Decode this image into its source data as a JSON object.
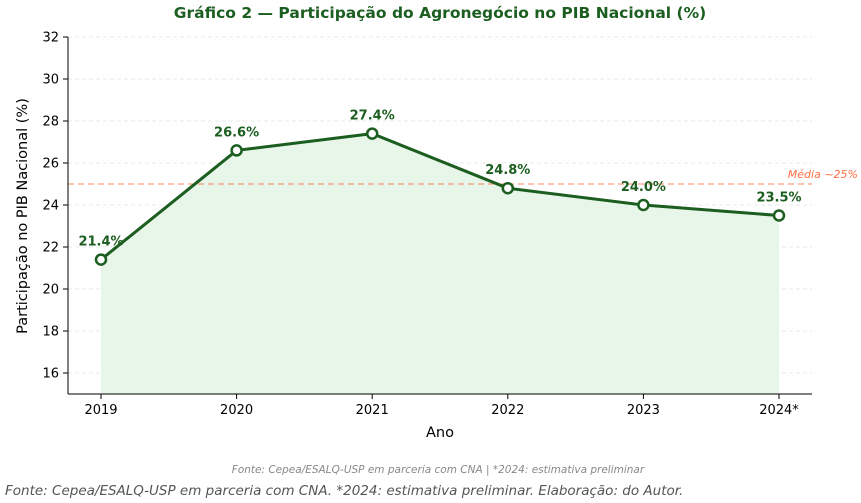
{
  "chart_data": {
    "type": "line",
    "title": "Gráfico 2 — Participação do Agronegócio no PIB Nacional (%)",
    "xlabel": "Ano",
    "ylabel": "Participação no PIB Nacional (%)",
    "categories": [
      "2019",
      "2020",
      "2021",
      "2022",
      "2023",
      "2024*"
    ],
    "series": [
      {
        "values": [
          21.4,
          26.6,
          27.4,
          24.8,
          24.0,
          23.5
        ],
        "labels": [
          "21.4%",
          "26.6%",
          "27.4%",
          "24.8%",
          "24.0%",
          "23.5%"
        ]
      }
    ],
    "ylim": [
      15,
      32
    ],
    "yticks": [
      16,
      18,
      20,
      22,
      24,
      26,
      28,
      30,
      32
    ],
    "reference_line": {
      "value": 25,
      "label": "Média ~25%"
    },
    "grid": true,
    "area_fill": true,
    "line_color": "#1b5e20",
    "fill_color": "#e8f5e9",
    "reference_color": "#ff7043",
    "source_note": "Fonte: Cepea/ESALQ-USP em parceria com CNA | *2024: estimativa preliminar"
  },
  "caption": "Fonte: Cepea/ESALQ-USP em parceria com CNA. *2024: estimativa preliminar. Elaboração: do Autor."
}
